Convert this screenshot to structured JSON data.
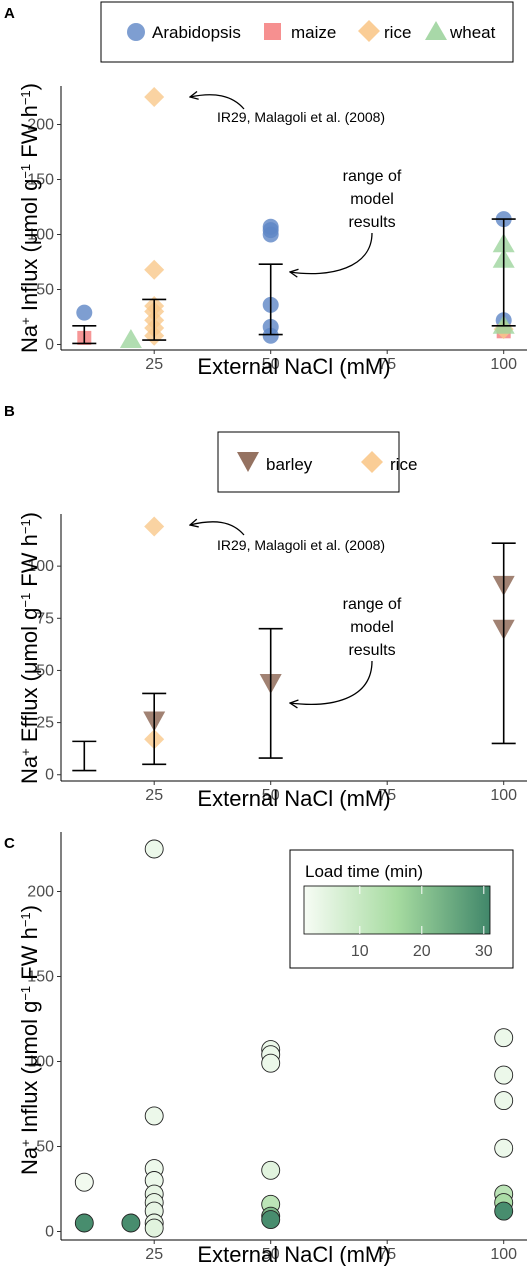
{
  "chart_data": [
    {
      "panel": "A",
      "type": "scatter",
      "xlabel": "External NaCl (mM)",
      "ylabel": {
        "na": "Na",
        "plus": "+",
        "text": " Influx  (μmol g",
        "exp": "−1",
        "text2": " FW h",
        "exp2": "−1",
        "close": ")"
      },
      "xlim": [
        5,
        105
      ],
      "ylim": [
        -5,
        235
      ],
      "xticks": [
        25,
        50,
        75,
        100
      ],
      "yticks": [
        0,
        50,
        100,
        150,
        200
      ],
      "legend": [
        "Arabidopsis",
        "maize",
        "rice",
        "wheat"
      ],
      "series": [
        {
          "name": "Arabidopsis",
          "color": "#5e86c5",
          "shape": "circle",
          "x": [
            10,
            50,
            50,
            50,
            50,
            50,
            50,
            100,
            100
          ],
          "y": [
            29,
            107,
            104,
            100,
            36,
            16,
            8,
            114,
            22
          ]
        },
        {
          "name": "maize",
          "color": "#f47c7c",
          "shape": "square",
          "x": [
            10,
            100
          ],
          "y": [
            6,
            12
          ]
        },
        {
          "name": "rice",
          "color": "#f9c88b",
          "shape": "diamond",
          "x": [
            25,
            25,
            25,
            25,
            25,
            25,
            25,
            100
          ],
          "y": [
            225,
            68,
            35,
            30,
            22,
            15,
            8,
            14
          ]
        },
        {
          "name": "wheat",
          "color": "#9ed49e",
          "shape": "triangle",
          "x": [
            20,
            100,
            100,
            100
          ],
          "y": [
            5,
            92,
            78,
            18
          ]
        }
      ],
      "range_bars": [
        {
          "x": 10,
          "low": 1,
          "high": 17
        },
        {
          "x": 25,
          "low": 4,
          "high": 41
        },
        {
          "x": 50,
          "low": 9,
          "high": 73
        },
        {
          "x": 100,
          "low": 17,
          "high": 114
        }
      ],
      "annotations": [
        "IR29, Malagoli et al. (2008)",
        "range of",
        "model",
        "results"
      ]
    },
    {
      "panel": "B",
      "type": "scatter",
      "xlabel": "External NaCl (mM)",
      "ylabel": {
        "na": "Na",
        "plus": "+",
        "text": " Efflux  (μmol g",
        "exp": "−1",
        "text2": " FW h",
        "exp2": "−1",
        "close": ")"
      },
      "xlim": [
        5,
        105
      ],
      "ylim": [
        -3,
        125
      ],
      "xticks": [
        25,
        50,
        75,
        100
      ],
      "yticks": [
        0,
        25,
        50,
        75,
        100
      ],
      "legend": [
        "barley",
        "rice"
      ],
      "series": [
        {
          "name": "barley",
          "color": "#8a6350",
          "shape": "triangle-down",
          "x": [
            25,
            50,
            100,
            100
          ],
          "y": [
            26,
            44,
            91,
            70
          ]
        },
        {
          "name": "rice",
          "color": "#f9c88b",
          "shape": "diamond",
          "x": [
            25,
            25
          ],
          "y": [
            119,
            17
          ]
        }
      ],
      "range_bars": [
        {
          "x": 10,
          "low": 2,
          "high": 16
        },
        {
          "x": 25,
          "low": 5,
          "high": 39
        },
        {
          "x": 50,
          "low": 8,
          "high": 70
        },
        {
          "x": 100,
          "low": 15,
          "high": 111
        }
      ],
      "annotations": [
        "IR29, Malagoli et al. (2008)",
        "range of",
        "model",
        "results"
      ]
    },
    {
      "panel": "C",
      "type": "scatter",
      "xlabel": "External NaCl (mM)",
      "ylabel": {
        "na": "Na",
        "plus": "+",
        "text": " Influx  (μmol g",
        "exp": "−1",
        "text2": " FW h",
        "exp2": "−1",
        "close": ")"
      },
      "xlim": [
        5,
        105
      ],
      "ylim": [
        -5,
        235
      ],
      "xticks": [
        25,
        50,
        75,
        100
      ],
      "yticks": [
        0,
        50,
        100,
        150,
        200
      ],
      "colorbar": {
        "title": "Load time (min)",
        "ticks": [
          10,
          20,
          30
        ],
        "range": [
          1,
          31
        ],
        "low_color": "#f7fcf5",
        "high_color": "#41876a"
      },
      "points": [
        {
          "x": 10,
          "y": 29,
          "load": 2
        },
        {
          "x": 10,
          "y": 5,
          "load": 30
        },
        {
          "x": 20,
          "y": 5,
          "load": 30
        },
        {
          "x": 25,
          "y": 225,
          "load": 3
        },
        {
          "x": 25,
          "y": 68,
          "load": 3
        },
        {
          "x": 25,
          "y": 37,
          "load": 3
        },
        {
          "x": 25,
          "y": 30,
          "load": 3
        },
        {
          "x": 25,
          "y": 22,
          "load": 4
        },
        {
          "x": 25,
          "y": 17,
          "load": 4
        },
        {
          "x": 25,
          "y": 12,
          "load": 4
        },
        {
          "x": 25,
          "y": 5,
          "load": 4
        },
        {
          "x": 25,
          "y": 2,
          "load": 5
        },
        {
          "x": 50,
          "y": 107,
          "load": 3
        },
        {
          "x": 50,
          "y": 104,
          "load": 3
        },
        {
          "x": 50,
          "y": 99,
          "load": 3
        },
        {
          "x": 50,
          "y": 36,
          "load": 5
        },
        {
          "x": 50,
          "y": 16,
          "load": 12
        },
        {
          "x": 50,
          "y": 9,
          "load": 22
        },
        {
          "x": 50,
          "y": 7,
          "load": 30
        },
        {
          "x": 100,
          "y": 114,
          "load": 3
        },
        {
          "x": 100,
          "y": 92,
          "load": 3
        },
        {
          "x": 100,
          "y": 77,
          "load": 3
        },
        {
          "x": 100,
          "y": 49,
          "load": 3
        },
        {
          "x": 100,
          "y": 22,
          "load": 12
        },
        {
          "x": 100,
          "y": 17,
          "load": 15
        },
        {
          "x": 100,
          "y": 12,
          "load": 30
        }
      ]
    }
  ]
}
